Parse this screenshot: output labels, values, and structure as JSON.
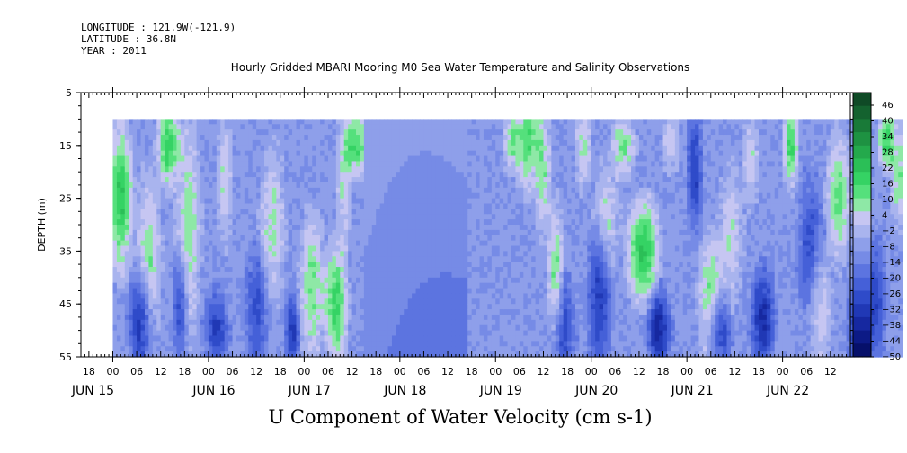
{
  "meta": {
    "longitude_label": "LONGITUDE : 121.9W(-121.9)",
    "latitude_label": "LATITUDE : 36.8N",
    "year_label": "YEAR : 2011"
  },
  "chart_data": {
    "type": "heatmap",
    "title": "Hourly Gridded MBARI Mooring M0 Sea Water Temperature and Salinity Observations",
    "ylabel": "DEPTH (m)",
    "xlabel": "U Component of Water Velocity (cm s-1)",
    "ylim": [
      55,
      5
    ],
    "data_depth_range": [
      10,
      55
    ],
    "y_ticks": [
      5,
      15,
      25,
      35,
      45,
      55
    ],
    "x_hour_tick_labels": [
      "18",
      "00",
      "06",
      "12",
      "18",
      "00",
      "06",
      "12",
      "18",
      "00",
      "06",
      "12",
      "18",
      "00",
      "06",
      "12",
      "18",
      "00",
      "06",
      "12",
      "18",
      "00",
      "06",
      "12",
      "18",
      "00",
      "06",
      "12",
      "18",
      "00",
      "06",
      "12"
    ],
    "x_date_labels": [
      "JUN 15",
      "JUN 16",
      "JUN 17",
      "JUN 18",
      "JUN 19",
      "JUN 20",
      "JUN 21",
      "JUN 22"
    ],
    "colorbar": {
      "levels": [
        "46",
        "40",
        "34",
        "28",
        "22",
        "16",
        "10",
        "4",
        "-2",
        "-8",
        "-14",
        "-20",
        "-26",
        "-32",
        "-38",
        "-44",
        "-50"
      ],
      "range": [
        -50,
        52
      ],
      "colors_high_to_low": [
        "#0f4a26",
        "#14622f",
        "#197a38",
        "#1e9242",
        "#24a94c",
        "#2bbf57",
        "#35d364",
        "#55e07c",
        "#8ee8a6",
        "#c6c6f2",
        "#a9b4ee",
        "#8e9fea",
        "#768be6",
        "#5c74e0",
        "#4560d8",
        "#2f4bc9",
        "#2038b5",
        "#1628a0",
        "#0c1a86",
        "#06106a"
      ]
    },
    "profile_days": [
      {
        "day": "JUN 15",
        "hours": "00-23",
        "pattern": "green near-surface and mid, blue at depth"
      },
      {
        "day": "JUN 16",
        "hours": "00-23",
        "pattern": "mixed blue with green bands near 06 and 12"
      },
      {
        "day": "JUN 17",
        "hours": "00-14",
        "pattern": "green around 06-14 depth 30-55"
      },
      {
        "day": "JUN 17-18",
        "hours": "15-17",
        "pattern": "smooth blue gap (gridded fill)"
      },
      {
        "day": "JUN 19",
        "hours": "00-23",
        "pattern": "green bands near 00 and 12"
      },
      {
        "day": "JUN 20",
        "hours": "00-23",
        "pattern": "green 06-12 at 25-45 m, blue at depth near 12-18"
      },
      {
        "day": "JUN 21",
        "hours": "00-23",
        "pattern": "green bands near surface at 12 and 22"
      },
      {
        "day": "JUN 22",
        "hours": "00-15",
        "pattern": "green near surface at 00-06 and 12"
      }
    ]
  }
}
